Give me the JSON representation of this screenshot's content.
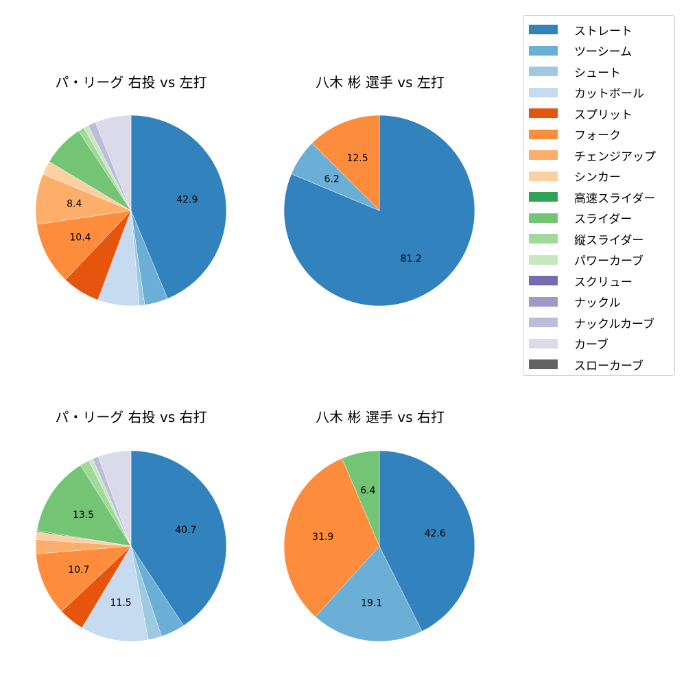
{
  "chart_data": [
    {
      "type": "pie",
      "title": "パ・リーグ 右投 vs 左打",
      "categories": [
        "ストレート",
        "ツーシーム",
        "シュート",
        "カットボール",
        "スプリット",
        "フォーク",
        "チェンジアップ",
        "シンカー",
        "スライダー",
        "縦スライダー",
        "パワーカーブ",
        "ナックルカーブ",
        "カーブ"
      ],
      "values": [
        42.9,
        3.9,
        0.9,
        6.9,
        6.3,
        10.4,
        8.4,
        2.3,
        7.0,
        1.0,
        0.8,
        1.3,
        6.0
      ],
      "labels_shown": [
        "42.9",
        "",
        "",
        "",
        "",
        "10.4",
        "8.4",
        "",
        "",
        "",
        "",
        "",
        ""
      ],
      "start_angle": 90,
      "direction": "clockwise"
    },
    {
      "type": "pie",
      "title": "八木 彬 選手 vs 左打",
      "categories": [
        "ストレート",
        "ツーシーム",
        "フォーク"
      ],
      "values": [
        81.2,
        6.2,
        12.5
      ],
      "labels_shown": [
        "81.2",
        "6.2",
        "12.5"
      ],
      "start_angle": 90,
      "direction": "clockwise"
    },
    {
      "type": "pie",
      "title": "パ・リーグ 右投 vs 右打",
      "categories": [
        "ストレート",
        "ツーシーム",
        "シュート",
        "カットボール",
        "スプリット",
        "フォーク",
        "チェンジアップ",
        "シンカー",
        "高速スライダー",
        "スライダー",
        "縦スライダー",
        "パワーカーブ",
        "ナックルカーブ",
        "カーブ"
      ],
      "values": [
        40.7,
        4.1,
        2.3,
        11.5,
        4.4,
        10.7,
        2.4,
        1.3,
        0.2,
        13.5,
        1.6,
        0.7,
        1.0,
        5.6
      ],
      "labels_shown": [
        "40.7",
        "",
        "",
        "11.5",
        "",
        "10.7",
        "",
        "",
        "",
        "13.5",
        "",
        "",
        "",
        ""
      ],
      "start_angle": 90,
      "direction": "clockwise"
    },
    {
      "type": "pie",
      "title": "八木 彬 選手 vs 右打",
      "categories": [
        "ストレート",
        "ツーシーム",
        "フォーク",
        "スライダー"
      ],
      "values": [
        42.6,
        19.1,
        31.9,
        6.4
      ],
      "labels_shown": [
        "42.6",
        "19.1",
        "31.9",
        "6.4"
      ],
      "start_angle": 90,
      "direction": "clockwise"
    }
  ],
  "colors": {
    "ストレート": "#3182bd",
    "ツーシーム": "#6baed6",
    "シュート": "#9ecae1",
    "カットボール": "#c6dbef",
    "スプリット": "#e6550d",
    "フォーク": "#fd8d3c",
    "チェンジアップ": "#fdae6b",
    "シンカー": "#fdd0a2",
    "高速スライダー": "#31a354",
    "スライダー": "#74c476",
    "縦スライダー": "#a1d99b",
    "パワーカーブ": "#c7e9c0",
    "スクリュー": "#756bb1",
    "ナックル": "#9e9ac8",
    "ナックルカーブ": "#bcbddc",
    "カーブ": "#dadaeb",
    "スローカーブ": "#636363"
  },
  "legend": {
    "items": [
      "ストレート",
      "ツーシーム",
      "シュート",
      "カットボール",
      "スプリット",
      "フォーク",
      "チェンジアップ",
      "シンカー",
      "高速スライダー",
      "スライダー",
      "縦スライダー",
      "パワーカーブ",
      "スクリュー",
      "ナックル",
      "ナックルカーブ",
      "カーブ",
      "スローカーブ"
    ]
  },
  "panels": [
    {
      "title": "パ・リーグ 右投 vs 左打"
    },
    {
      "title": "八木 彬 選手 vs 左打"
    },
    {
      "title": "パ・リーグ 右投 vs 右打"
    },
    {
      "title": "八木 彬 選手 vs 右打"
    }
  ]
}
